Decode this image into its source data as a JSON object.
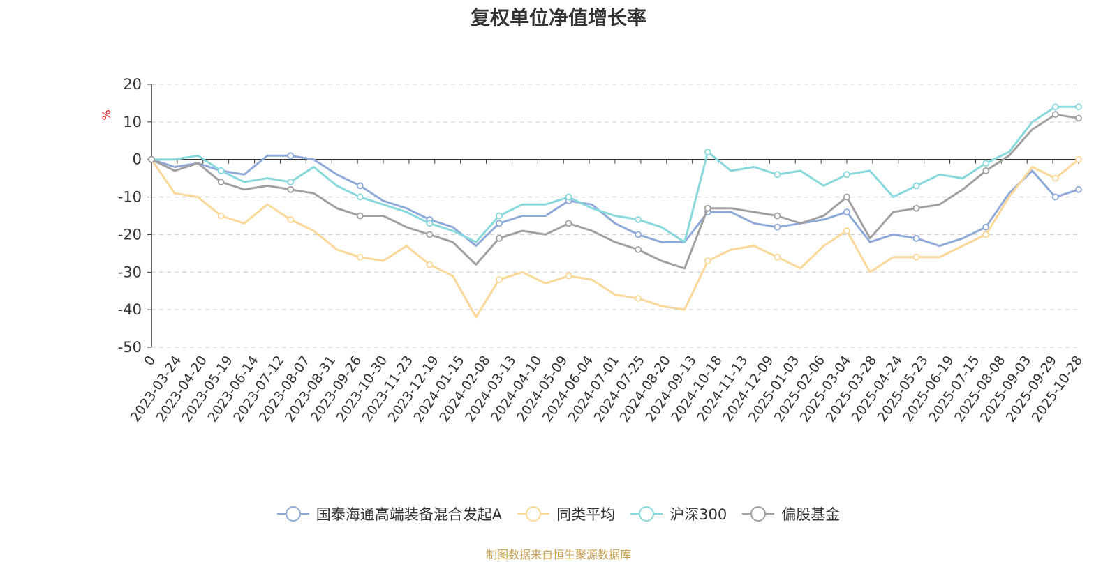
{
  "chart_data": {
    "type": "line",
    "title": "复权单位净值增长率",
    "ylabel": "%",
    "ylim": [
      -50,
      20
    ],
    "yticks": [
      20,
      10,
      0,
      -10,
      -20,
      -30,
      -40,
      -50
    ],
    "x_ticks": [
      "0",
      "2023-03-24",
      "2023-04-20",
      "2023-05-19",
      "2023-06-14",
      "2023-07-12",
      "2023-08-07",
      "2023-08-31",
      "2023-09-26",
      "2023-10-30",
      "2023-11-23",
      "2023-12-19",
      "2024-01-15",
      "2024-02-08",
      "2024-03-13",
      "2024-04-10",
      "2024-05-09",
      "2024-06-04",
      "2024-07-01",
      "2024-07-25",
      "2024-08-20",
      "2024-09-13",
      "2024-10-18",
      "2024-11-13",
      "2024-12-09",
      "2025-01-03",
      "2025-02-06",
      "2025-03-04",
      "2025-03-28",
      "2025-04-24",
      "2025-05-23",
      "2025-06-19",
      "2025-07-15",
      "2025-08-08",
      "2025-09-03",
      "2025-09-29",
      "2025-10-28"
    ],
    "series": [
      {
        "name": "国泰海通高端装备混合发起A",
        "color": "#8fa9d8",
        "values": [
          0,
          -2,
          -1,
          -3,
          -4,
          1,
          1,
          0,
          -4,
          -7,
          -11,
          -13,
          -16,
          -18,
          -23,
          -17,
          -15,
          -15,
          -11,
          -12,
          -17,
          -20,
          -22,
          -22,
          -14,
          -14,
          -17,
          -18,
          -17,
          -16,
          -14,
          -22,
          -20,
          -21,
          -23,
          -21,
          -18,
          -9,
          -3,
          -10,
          -8
        ]
      },
      {
        "name": "同类平均",
        "color": "#fbd89a",
        "values": [
          0,
          -9,
          -10,
          -15,
          -17,
          -12,
          -16,
          -19,
          -24,
          -26,
          -27,
          -23,
          -28,
          -31,
          -42,
          -32,
          -30,
          -33,
          -31,
          -32,
          -36,
          -37,
          -39,
          -40,
          -27,
          -24,
          -23,
          -26,
          -29,
          -23,
          -19,
          -30,
          -26,
          -26,
          -26,
          -23,
          -20,
          -10,
          -2,
          -5,
          0
        ]
      },
      {
        "name": "沪深300",
        "color": "#88d8dc",
        "values": [
          0,
          0,
          1,
          -3,
          -6,
          -5,
          -6,
          -2,
          -7,
          -10,
          -12,
          -14,
          -17,
          -19,
          -22,
          -15,
          -12,
          -12,
          -10,
          -13,
          -15,
          -16,
          -18,
          -22,
          2,
          -3,
          -2,
          -4,
          -3,
          -7,
          -4,
          -3,
          -10,
          -7,
          -4,
          -5,
          -1,
          2,
          10,
          14,
          14
        ]
      },
      {
        "name": "偏股基金",
        "color": "#a0a0a0",
        "values": [
          0,
          -3,
          -1,
          -6,
          -8,
          -7,
          -8,
          -9,
          -13,
          -15,
          -15,
          -18,
          -20,
          -22,
          -28,
          -21,
          -19,
          -20,
          -17,
          -19,
          -22,
          -24,
          -27,
          -29,
          -13,
          -13,
          -14,
          -15,
          -17,
          -15,
          -10,
          -21,
          -14,
          -13,
          -12,
          -8,
          -3,
          1,
          8,
          12,
          11
        ]
      }
    ]
  },
  "source": "制图数据来自恒生聚源数据库"
}
